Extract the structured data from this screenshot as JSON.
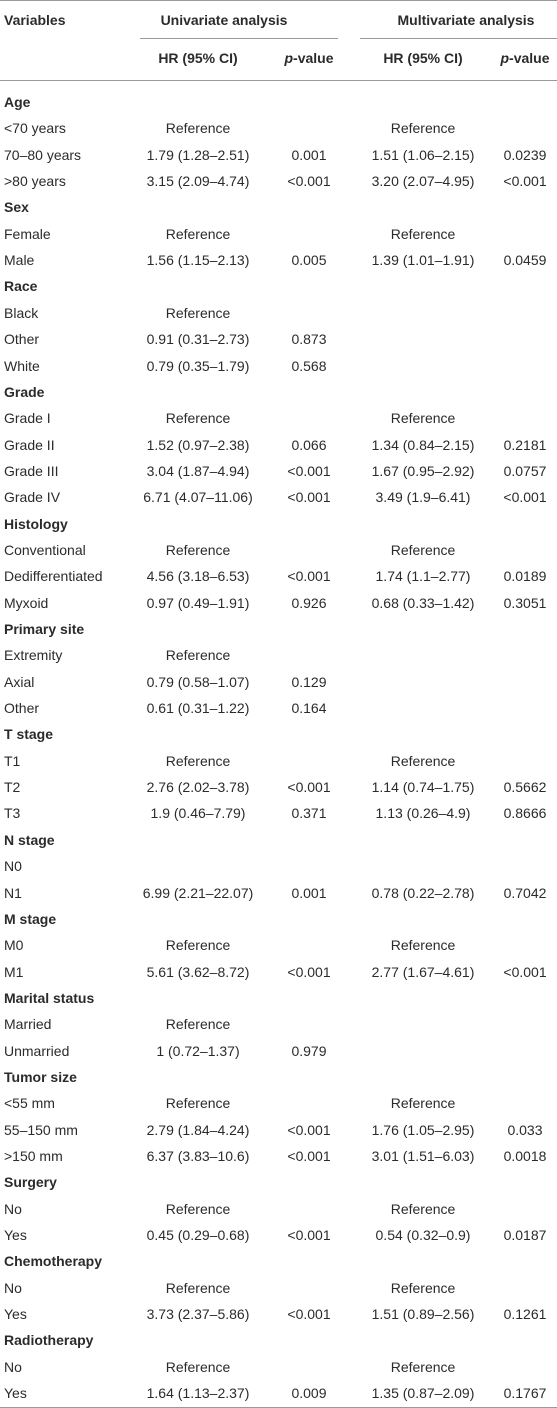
{
  "table": {
    "header": {
      "variables": "Variables",
      "univariate": "Univariate analysis",
      "multivariate": "Multivariate analysis",
      "uni_hr": "HR (95% CI)",
      "uni_p": "p-value",
      "multi_hr": "HR (95% CI)",
      "multi_p": "p-value"
    },
    "sections": [
      {
        "title": "Age",
        "rows": [
          {
            "variable": "<70 years",
            "uni_hr": "Reference",
            "multi_hr": "Reference"
          },
          {
            "variable": "70–80 years",
            "uni_hr": "1.79 (1.28–2.51)",
            "uni_p": "0.001",
            "multi_hr": "1.51 (1.06–2.15)",
            "multi_p": "0.0239"
          },
          {
            "variable": ">80 years",
            "uni_hr": "3.15 (2.09–4.74)",
            "uni_p": "<0.001",
            "multi_hr": "3.20 (2.07–4.95)",
            "multi_p": "<0.001"
          }
        ]
      },
      {
        "title": "Sex",
        "rows": [
          {
            "variable": "Female",
            "uni_hr": "Reference",
            "multi_hr": "Reference"
          },
          {
            "variable": "Male",
            "uni_hr": "1.56 (1.15–2.13)",
            "uni_p": "0.005",
            "multi_hr": "1.39 (1.01–1.91)",
            "multi_p": "0.0459"
          }
        ]
      },
      {
        "title": "Race",
        "rows": [
          {
            "variable": "Black",
            "uni_hr": "Reference"
          },
          {
            "variable": "Other",
            "uni_hr": "0.91 (0.31–2.73)",
            "uni_p": "0.873"
          },
          {
            "variable": "White",
            "uni_hr": "0.79 (0.35–1.79)",
            "uni_p": "0.568"
          }
        ]
      },
      {
        "title": "Grade",
        "rows": [
          {
            "variable": "Grade I",
            "uni_hr": "Reference",
            "multi_hr": "Reference"
          },
          {
            "variable": "Grade II",
            "uni_hr": "1.52 (0.97–2.38)",
            "uni_p": "0.066",
            "multi_hr": "1.34 (0.84–2.15)",
            "multi_p": "0.2181"
          },
          {
            "variable": "Grade III",
            "uni_hr": "3.04 (1.87–4.94)",
            "uni_p": "<0.001",
            "multi_hr": "1.67 (0.95–2.92)",
            "multi_p": "0.0757"
          },
          {
            "variable": "Grade IV",
            "uni_hr": "6.71 (4.07–11.06)",
            "uni_p": "<0.001",
            "multi_hr": "3.49 (1.9–6.41)",
            "multi_p": "<0.001"
          }
        ]
      },
      {
        "title": "Histology",
        "rows": [
          {
            "variable": "Conventional",
            "uni_hr": "Reference",
            "multi_hr": "Reference"
          },
          {
            "variable": "Dedifferentiated",
            "uni_hr": "4.56 (3.18–6.53)",
            "uni_p": "<0.001",
            "multi_hr": "1.74 (1.1–2.77)",
            "multi_p": "0.0189"
          },
          {
            "variable": "Myxoid",
            "uni_hr": "0.97 (0.49–1.91)",
            "uni_p": "0.926",
            "multi_hr": "0.68 (0.33–1.42)",
            "multi_p": "0.3051"
          }
        ]
      },
      {
        "title": "Primary site",
        "rows": [
          {
            "variable": "Extremity",
            "uni_hr": "Reference"
          },
          {
            "variable": "Axial",
            "uni_hr": "0.79 (0.58–1.07)",
            "uni_p": "0.129"
          },
          {
            "variable": "Other",
            "uni_hr": "0.61 (0.31–1.22)",
            "uni_p": "0.164"
          }
        ]
      },
      {
        "title": "T stage",
        "rows": [
          {
            "variable": "T1",
            "uni_hr": "Reference",
            "multi_hr": "Reference"
          },
          {
            "variable": "T2",
            "uni_hr": "2.76 (2.02–3.78)",
            "uni_p": "<0.001",
            "multi_hr": "1.14 (0.74–1.75)",
            "multi_p": "0.5662"
          },
          {
            "variable": "T3",
            "uni_hr": "1.9 (0.46–7.79)",
            "uni_p": "0.371",
            "multi_hr": "1.13 (0.26–4.9)",
            "multi_p": "0.8666"
          }
        ]
      },
      {
        "title": "N stage",
        "rows": [
          {
            "variable": "N0"
          },
          {
            "variable": "N1",
            "uni_hr": "6.99 (2.21–22.07)",
            "uni_p": "0.001",
            "multi_hr": "0.78 (0.22–2.78)",
            "multi_p": "0.7042"
          }
        ]
      },
      {
        "title": "M stage",
        "rows": [
          {
            "variable": "M0",
            "uni_hr": "Reference",
            "multi_hr": "Reference"
          },
          {
            "variable": "M1",
            "uni_hr": "5.61 (3.62–8.72)",
            "uni_p": "<0.001",
            "multi_hr": "2.77 (1.67–4.61)",
            "multi_p": "<0.001"
          }
        ]
      },
      {
        "title": "Marital status",
        "rows": [
          {
            "variable": "Married",
            "uni_hr": "Reference"
          },
          {
            "variable": "Unmarried",
            "uni_hr": "1 (0.72–1.37)",
            "uni_p": "0.979"
          }
        ]
      },
      {
        "title": "Tumor size",
        "rows": [
          {
            "variable": "<55 mm",
            "uni_hr": "Reference",
            "multi_hr": "Reference"
          },
          {
            "variable": "55–150 mm",
            "uni_hr": "2.79 (1.84–4.24)",
            "uni_p": "<0.001",
            "multi_hr": "1.76 (1.05–2.95)",
            "multi_p": "0.033"
          },
          {
            "variable": ">150 mm",
            "uni_hr": "6.37 (3.83–10.6)",
            "uni_p": "<0.001",
            "multi_hr": "3.01 (1.51–6.03)",
            "multi_p": "0.0018"
          }
        ]
      },
      {
        "title": "Surgery",
        "rows": [
          {
            "variable": "No",
            "uni_hr": "Reference",
            "multi_hr": "Reference"
          },
          {
            "variable": "Yes",
            "uni_hr": "0.45 (0.29–0.68)",
            "uni_p": "<0.001",
            "multi_hr": "0.54 (0.32–0.9)",
            "multi_p": "0.0187"
          }
        ]
      },
      {
        "title": "Chemotherapy",
        "rows": [
          {
            "variable": "No",
            "uni_hr": "Reference",
            "multi_hr": "Reference"
          },
          {
            "variable": "Yes",
            "uni_hr": "3.73 (2.37–5.86)",
            "uni_p": "<0.001",
            "multi_hr": "1.51 (0.89–2.56)",
            "multi_p": "0.1261"
          }
        ]
      },
      {
        "title": "Radiotherapy",
        "rows": [
          {
            "variable": "No",
            "uni_hr": "Reference",
            "multi_hr": "Reference"
          },
          {
            "variable": "Yes",
            "uni_hr": "1.64 (1.13–2.37)",
            "uni_p": "0.009",
            "multi_hr": "1.35 (0.87–2.09)",
            "multi_p": "0.1767"
          }
        ]
      }
    ]
  }
}
